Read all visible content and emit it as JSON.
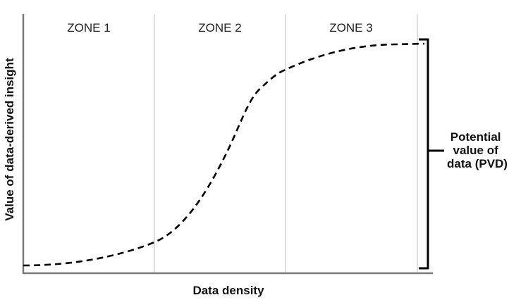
{
  "diagram": {
    "zones": [
      {
        "label": "ZONE 1"
      },
      {
        "label": "ZONE 2"
      },
      {
        "label": "ZONE 3"
      }
    ],
    "x_axis_title": "Data density",
    "y_axis_title": "Value of data-derived insight",
    "pvd_label_lines": [
      "Potential",
      "value of",
      "data (PVD)"
    ],
    "colors": {
      "axis": "#7a7a7a",
      "zone_divider": "#c8c8c8",
      "curve": "#000000",
      "bracket": "#000000",
      "text": "#111111"
    },
    "curve_style": "dashed"
  }
}
